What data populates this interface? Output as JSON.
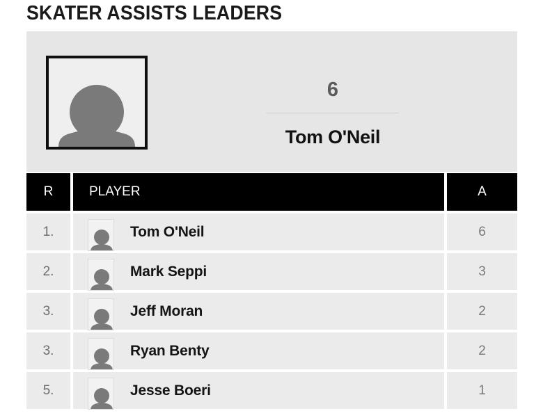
{
  "title": "SKATER ASSISTS LEADERS",
  "leader": {
    "stat_value": "6",
    "name": "Tom O'Neil",
    "photo_icon": "person-silhouette-icon"
  },
  "table": {
    "headers": {
      "rank": "R",
      "player": "PLAYER",
      "stat": "A"
    },
    "rows": [
      {
        "rank": "1.",
        "player": "Tom O'Neil",
        "value": "6"
      },
      {
        "rank": "2.",
        "player": "Mark Seppi",
        "value": "3"
      },
      {
        "rank": "3.",
        "player": "Jeff Moran",
        "value": "2"
      },
      {
        "rank": "3.",
        "player": "Ryan Benty",
        "value": "2"
      },
      {
        "rank": "5.",
        "player": "Jesse Boeri",
        "value": "1"
      }
    ]
  },
  "colors": {
    "header_bg": "#000000",
    "row_bg": "#ebebeb",
    "hero_bg": "#e6e6e6",
    "silhouette": "#7a7a7a"
  }
}
